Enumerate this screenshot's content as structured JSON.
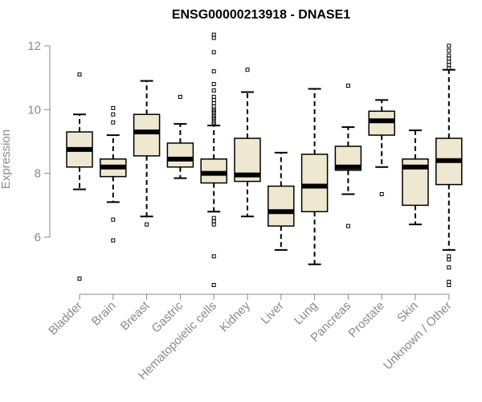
{
  "chart_data": {
    "type": "box",
    "title": "ENSG00000213918 - DNASE1",
    "xlabel": "",
    "ylabel": "Expression",
    "ylim": [
      4.3,
      12.4
    ],
    "yticks": [
      6,
      8,
      10,
      12
    ],
    "box_fill": "#efe8d1",
    "median_color": "#000000",
    "categories": [
      "Bladder",
      "Brain",
      "Breast",
      "Gastric",
      "Hematopoietic cells",
      "Kidney",
      "Liver",
      "Lung",
      "Pancreas",
      "Prostate",
      "Skin",
      "Unknown / Other"
    ],
    "series": [
      {
        "category": "Bladder",
        "whisker_low": 7.5,
        "q1": 8.2,
        "median": 8.75,
        "q3": 9.3,
        "whisker_high": 9.85,
        "outliers": [
          11.1,
          4.7
        ]
      },
      {
        "category": "Brain",
        "whisker_low": 7.1,
        "q1": 7.9,
        "median": 8.2,
        "q3": 8.45,
        "whisker_high": 9.2,
        "outliers": [
          10.05,
          9.85,
          9.6,
          6.55,
          5.9
        ]
      },
      {
        "category": "Breast",
        "whisker_low": 6.65,
        "q1": 8.55,
        "median": 9.3,
        "q3": 9.85,
        "whisker_high": 10.9,
        "outliers": [
          6.4
        ]
      },
      {
        "category": "Gastric",
        "whisker_low": 7.85,
        "q1": 8.2,
        "median": 8.45,
        "q3": 8.95,
        "whisker_high": 9.55,
        "outliers": [
          10.4
        ]
      },
      {
        "category": "Hematopoietic cells",
        "whisker_low": 6.8,
        "q1": 7.7,
        "median": 8.0,
        "q3": 8.45,
        "whisker_high": 9.5,
        "outliers": [
          12.35,
          12.25,
          11.8,
          11.2,
          10.8,
          10.6,
          10.4,
          10.3,
          10.2,
          10.1,
          10.0,
          9.95,
          9.9,
          9.8,
          9.75,
          9.7,
          9.6,
          9.55,
          6.6,
          6.5,
          6.4,
          5.4,
          4.5
        ]
      },
      {
        "category": "Kidney",
        "whisker_low": 6.65,
        "q1": 7.75,
        "median": 7.95,
        "q3": 9.1,
        "whisker_high": 10.55,
        "outliers": [
          11.25
        ]
      },
      {
        "category": "Liver",
        "whisker_low": 5.6,
        "q1": 6.35,
        "median": 6.8,
        "q3": 7.6,
        "whisker_high": 8.65,
        "outliers": []
      },
      {
        "category": "Lung",
        "whisker_low": 5.15,
        "q1": 6.8,
        "median": 7.6,
        "q3": 8.6,
        "whisker_high": 10.65,
        "outliers": []
      },
      {
        "category": "Pancreas",
        "whisker_low": 7.35,
        "q1": 8.1,
        "median": 8.2,
        "q3": 8.85,
        "whisker_high": 9.45,
        "outliers": [
          10.75,
          6.35
        ]
      },
      {
        "category": "Prostate",
        "whisker_low": 8.2,
        "q1": 9.2,
        "median": 9.65,
        "q3": 9.95,
        "whisker_high": 10.3,
        "outliers": [
          7.35
        ]
      },
      {
        "category": "Skin",
        "whisker_low": 6.4,
        "q1": 7.0,
        "median": 8.2,
        "q3": 8.45,
        "whisker_high": 9.35,
        "outliers": []
      },
      {
        "category": "Unknown / Other",
        "whisker_low": 5.6,
        "q1": 7.65,
        "median": 8.4,
        "q3": 9.1,
        "whisker_high": 11.25,
        "outliers": [
          12.0,
          11.85,
          11.7,
          11.6,
          11.5,
          11.4,
          11.3,
          5.4,
          5.3,
          5.05,
          4.6,
          4.5
        ]
      }
    ]
  }
}
